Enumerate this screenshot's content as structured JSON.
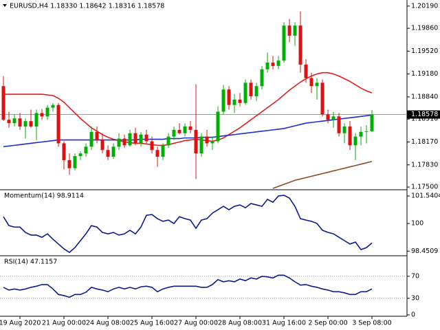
{
  "chart_data": [
    {
      "type": "candlestick",
      "title": "EURUSD,H4  1.18330 1.18642 1.18316 1.18578",
      "categories": [
        null,
        null,
        null,
        "19 Aug 2020",
        null,
        null,
        null,
        null,
        null,
        null,
        null,
        "21 Aug 00:00",
        null,
        null,
        null,
        null,
        null,
        null,
        null,
        "24 Aug 08:00",
        null,
        null,
        null,
        null,
        null,
        null,
        null,
        "25 Aug 16:00",
        null,
        null,
        null,
        null,
        null,
        null,
        null,
        "27 Aug 00:00",
        null,
        null,
        null,
        null,
        null,
        null,
        null,
        "28 Aug 08:00",
        null,
        null,
        null,
        null,
        null,
        null,
        null,
        "31 Aug 16:00",
        null,
        null,
        null,
        null,
        null,
        null,
        null,
        "2 Sep 00:00",
        null,
        null,
        null,
        null,
        null,
        null,
        null,
        "3 Sep 08:00"
      ],
      "open": [
        1.19,
        1.185,
        1.1845,
        1.1852,
        1.184,
        1.1848,
        1.184,
        1.186,
        1.1855,
        1.1868,
        1.1872,
        1.1815,
        1.179,
        1.1778,
        1.1796,
        1.18,
        1.181,
        1.1832,
        1.182,
        1.1805,
        1.1795,
        1.181,
        1.1822,
        1.1812,
        1.183,
        1.1815,
        1.1828,
        1.1818,
        1.1805,
        1.1795,
        1.1812,
        1.1825,
        1.1835,
        1.183,
        1.184,
        1.1835,
        1.18,
        1.1825,
        1.1815,
        1.1818,
        1.1862,
        1.1895,
        1.1872,
        1.188,
        1.1875,
        1.1905,
        1.1885,
        1.19,
        1.1925,
        1.1935,
        1.193,
        1.1938,
        1.199,
        1.1975,
        1.199,
        1.1932,
        1.1912,
        1.19,
        1.1905,
        1.1858,
        1.185,
        1.1855,
        1.183,
        1.184,
        1.1812,
        1.1825,
        1.1832,
        1.1833
      ],
      "high": [
        1.1915,
        1.1862,
        1.1858,
        1.186,
        1.1852,
        1.1865,
        1.1865,
        1.1866,
        1.1872,
        1.1875,
        1.1875,
        1.1818,
        1.18,
        1.18,
        1.1803,
        1.1815,
        1.184,
        1.184,
        1.183,
        1.1812,
        1.1815,
        1.183,
        1.1828,
        1.1835,
        1.1838,
        1.1832,
        1.1835,
        1.1825,
        1.181,
        1.1815,
        1.183,
        1.184,
        1.1845,
        1.1845,
        1.1848,
        1.1903,
        1.183,
        1.1835,
        1.1825,
        1.187,
        1.1902,
        1.19,
        1.1888,
        1.189,
        1.191,
        1.191,
        1.1905,
        1.193,
        1.195,
        1.1945,
        1.1945,
        1.1995,
        1.2,
        1.1995,
        1.2011,
        1.194,
        1.192,
        1.1912,
        1.191,
        1.1865,
        1.1862,
        1.186,
        1.1845,
        1.1848,
        1.183,
        1.184,
        1.1842,
        1.18642
      ],
      "low": [
        1.1848,
        1.1838,
        1.184,
        1.1835,
        1.1822,
        1.1838,
        1.182,
        1.185,
        1.185,
        1.1862,
        1.181,
        1.1776,
        1.1768,
        1.1775,
        1.179,
        1.1795,
        1.1805,
        1.1815,
        1.18,
        1.179,
        1.1792,
        1.1805,
        1.1808,
        1.181,
        1.1812,
        1.181,
        1.1815,
        1.18,
        1.178,
        1.179,
        1.1808,
        1.182,
        1.1828,
        1.1825,
        1.183,
        1.1762,
        1.1795,
        1.181,
        1.1805,
        1.1815,
        1.1858,
        1.1865,
        1.186,
        1.187,
        1.1872,
        1.188,
        1.1878,
        1.1895,
        1.192,
        1.1925,
        1.1925,
        1.1935,
        1.1965,
        1.196,
        1.192,
        1.1905,
        1.189,
        1.188,
        1.1855,
        1.1845,
        1.1838,
        1.1825,
        1.1815,
        1.1805,
        1.179,
        1.1812,
        1.1815,
        1.18316
      ],
      "close": [
        1.185,
        1.1845,
        1.1852,
        1.184,
        1.1848,
        1.184,
        1.186,
        1.1855,
        1.1868,
        1.1872,
        1.1815,
        1.179,
        1.1778,
        1.1796,
        1.18,
        1.181,
        1.1832,
        1.182,
        1.1805,
        1.1795,
        1.181,
        1.1822,
        1.1812,
        1.183,
        1.1815,
        1.1828,
        1.1818,
        1.1805,
        1.1795,
        1.1812,
        1.1825,
        1.1835,
        1.183,
        1.184,
        1.1835,
        1.18,
        1.1825,
        1.1815,
        1.1818,
        1.1862,
        1.1895,
        1.1872,
        1.188,
        1.1875,
        1.1905,
        1.1885,
        1.19,
        1.1925,
        1.1935,
        1.193,
        1.1938,
        1.199,
        1.1975,
        1.199,
        1.1932,
        1.1912,
        1.19,
        1.1905,
        1.1858,
        1.185,
        1.1855,
        1.183,
        1.184,
        1.1812,
        1.1825,
        1.1832,
        1.1833,
        1.18578
      ],
      "up_color": "#00b000",
      "down_color": "#e01010",
      "overlays": [
        {
          "color": "#e01e1e",
          "values": [
            1.1888,
            1.1888,
            1.1888,
            1.1888,
            1.1888,
            1.1888,
            1.1888,
            1.1888,
            1.1887,
            1.1886,
            1.1882,
            1.1876,
            1.1868,
            1.186,
            1.1852,
            1.1845,
            1.1838,
            1.1833,
            1.1828,
            1.1824,
            1.1821,
            1.1819,
            1.1817,
            1.1816,
            1.1815,
            1.1815,
            1.1814,
            1.1813,
            1.1812,
            1.1812,
            1.1813,
            1.1815,
            1.1817,
            1.1819,
            1.182,
            1.1821,
            1.182,
            1.1819,
            1.1818,
            1.182,
            1.1823,
            1.1828,
            1.1833,
            1.1838,
            1.1844,
            1.185,
            1.1856,
            1.1862,
            1.1868,
            1.1874,
            1.188,
            1.1887,
            1.1894,
            1.19,
            1.1906,
            1.1911,
            1.1915,
            1.1918,
            1.192,
            1.192,
            1.1918,
            1.1915,
            1.1911,
            1.1907,
            1.1902,
            1.1897,
            1.1893,
            1.189
          ]
        },
        {
          "color": "#1a2ed0",
          "values": [
            1.181,
            1.1811,
            1.1812,
            1.1813,
            1.1814,
            1.1815,
            1.1816,
            1.1817,
            1.1818,
            1.1819,
            1.182,
            1.182,
            1.182,
            1.182,
            1.182,
            1.182,
            1.182,
            1.182,
            1.182,
            1.182,
            1.182,
            1.182,
            1.182,
            1.182,
            1.182,
            1.1821,
            1.1821,
            1.1821,
            1.1821,
            1.1821,
            1.1822,
            1.1822,
            1.1822,
            1.1823,
            1.1823,
            1.1823,
            1.1824,
            1.1824,
            1.1824,
            1.1825,
            1.1826,
            1.1827,
            1.1828,
            1.1829,
            1.183,
            1.1831,
            1.1832,
            1.1833,
            1.1834,
            1.1835,
            1.1836,
            1.1837,
            1.1839,
            1.1841,
            1.1843,
            1.1845,
            1.1846,
            1.1847,
            1.1848,
            1.1849,
            1.185,
            1.1851,
            1.1852,
            1.1853,
            1.1854,
            1.1855,
            1.1856,
            1.1857
          ]
        },
        {
          "color": "#8b4a2b",
          "values": [
            null,
            null,
            null,
            null,
            null,
            null,
            null,
            null,
            null,
            null,
            null,
            null,
            null,
            null,
            null,
            null,
            null,
            null,
            null,
            null,
            null,
            null,
            null,
            null,
            null,
            null,
            null,
            null,
            null,
            null,
            null,
            null,
            null,
            null,
            null,
            null,
            null,
            null,
            null,
            null,
            null,
            null,
            null,
            null,
            null,
            null,
            null,
            null,
            null,
            1.1748,
            1.1751,
            1.1754,
            1.1757,
            1.176,
            1.1762,
            1.1764,
            1.1766,
            1.1768,
            1.177,
            1.1772,
            1.1774,
            1.1776,
            1.1778,
            1.178,
            1.1782,
            1.1784,
            1.1786,
            1.1788
          ]
        }
      ],
      "last_price": {
        "value": 1.18578,
        "label": "1.18578"
      },
      "ylim": [
        1.1747,
        1.2027
      ],
      "yticks": [
        {
          "value": 1.2019,
          "label": "1.20190"
        },
        {
          "value": 1.1986,
          "label": "1.19860"
        },
        {
          "value": 1.1952,
          "label": "1.19520"
        },
        {
          "value": 1.1918,
          "label": "1.19180"
        },
        {
          "value": 1.1884,
          "label": "1.18840"
        },
        {
          "value": 1.1851,
          "label": "1.18510"
        },
        {
          "value": 1.1817,
          "label": "1.18170"
        },
        {
          "value": 1.1783,
          "label": "1.17830"
        },
        {
          "value": 1.175,
          "label": "1.17500"
        }
      ],
      "grid": false
    },
    {
      "type": "line",
      "title": "Momentum(14) 98.9114",
      "color": "#0a1a8a",
      "values": [
        100.38,
        99.88,
        99.8,
        99.8,
        99.5,
        99.35,
        99.35,
        99.23,
        99.42,
        99.12,
        98.85,
        98.58,
        98.38,
        98.65,
        99.04,
        99.42,
        99.88,
        99.8,
        99.5,
        99.42,
        99.5,
        99.35,
        99.42,
        99.62,
        99.42,
        99.8,
        100.46,
        100.5,
        100.27,
        100.12,
        100.19,
        100,
        100.38,
        100.27,
        100.19,
        99.73,
        100.19,
        100.27,
        100.58,
        100.77,
        100.96,
        100.77,
        100.96,
        101.04,
        100.88,
        101.12,
        101.04,
        100.96,
        101.35,
        101.19,
        101.54,
        101.58,
        101.42,
        100.96,
        100.27,
        100.19,
        100.12,
        100,
        99.62,
        99.5,
        99.42,
        99.23,
        99.04,
        98.85,
        98.96,
        98.54,
        98.65,
        98.91
      ],
      "ylim": [
        98.27,
        101.85
      ],
      "yticks": [
        101.5404,
        100,
        98.4509
      ],
      "grid": false
    },
    {
      "type": "line",
      "title": "RSI(14) 47.1157",
      "color": "#0a1a8a",
      "values": [
        50,
        45,
        47,
        45,
        47,
        50,
        52,
        55,
        55,
        47,
        37,
        35,
        32,
        37,
        37,
        41,
        50,
        47,
        45,
        42,
        47,
        50,
        47,
        50,
        47,
        51,
        52,
        50,
        42,
        47,
        50,
        52,
        52,
        52,
        52,
        52,
        50,
        50,
        55,
        64,
        60,
        62,
        60,
        65,
        62,
        67,
        65,
        70,
        69,
        67,
        72,
        72,
        67,
        60,
        54,
        55,
        52,
        50,
        47,
        45,
        42,
        42,
        40,
        37,
        37,
        42,
        42,
        47.12
      ],
      "ylim": [
        0,
        106
      ],
      "yticks": [
        70,
        30,
        0
      ],
      "grid": true
    }
  ]
}
